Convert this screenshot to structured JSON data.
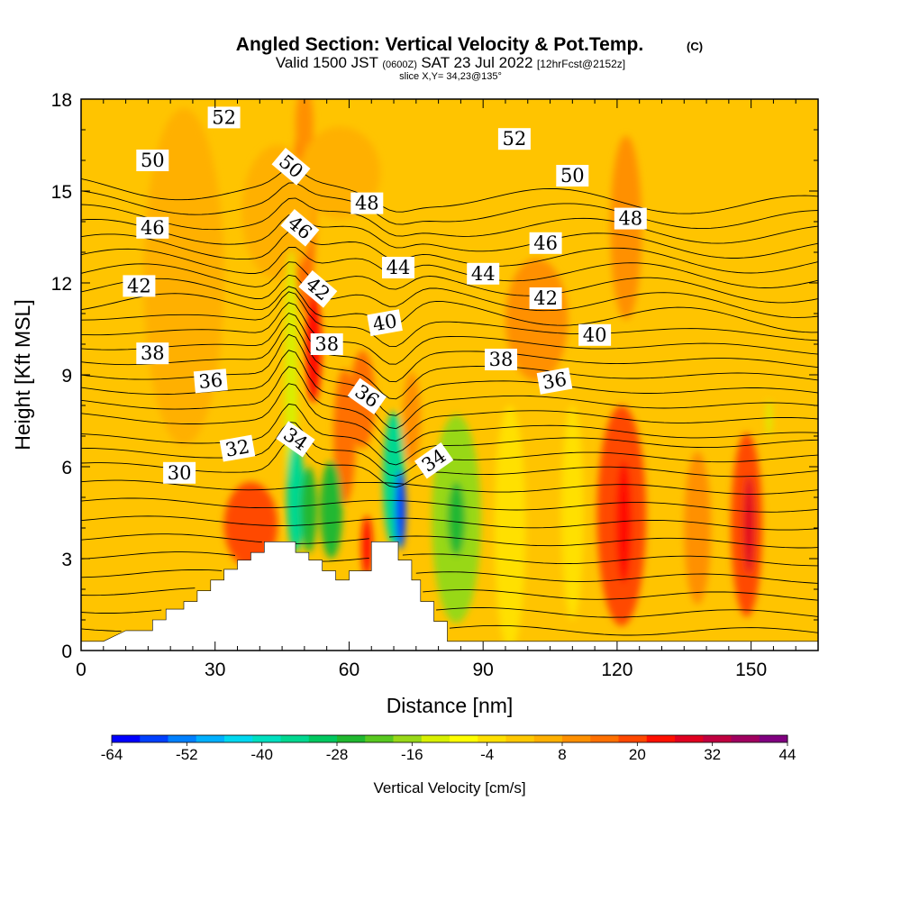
{
  "header": {
    "title_main": "Angled Section: Vertical Velocity & Pot.Temp.",
    "title_mark": "(C)",
    "valid_a": "Valid 1500 JST",
    "valid_b": "(0600Z)",
    "valid_c": "SAT 23 Jul 2022",
    "valid_d": "[12hrFcst@2152z]",
    "slice": "slice X,Y= 34,23@135°"
  },
  "chart_data": {
    "type": "heatmap",
    "title": "Angled Section: Vertical Velocity & Pot.Temp.",
    "xlabel": "Distance [nm]",
    "ylabel": "Height [Kft MSL]",
    "xlim": [
      0,
      165
    ],
    "ylim": [
      0,
      18
    ],
    "x_ticks": [
      0,
      30,
      60,
      90,
      120,
      150
    ],
    "y_ticks": [
      0,
      3,
      6,
      9,
      12,
      15,
      18
    ],
    "colorbar": {
      "label": "Vertical Velocity [cm/s]",
      "ticks": [
        -64,
        -52,
        -40,
        -28,
        -16,
        -4,
        8,
        20,
        32,
        44
      ],
      "colors": [
        "#0000ff",
        "#0040ff",
        "#0080ff",
        "#00b0ff",
        "#00d8f0",
        "#00e0c0",
        "#00d890",
        "#00c860",
        "#20b830",
        "#58c820",
        "#98d818",
        "#d8f000",
        "#ffff00",
        "#ffe000",
        "#ffc800",
        "#ffb000",
        "#ff9000",
        "#ff7000",
        "#ff4800",
        "#ff1000",
        "#e00020",
        "#c00040",
        "#a00060",
        "#800080"
      ]
    },
    "terrain_kft": [
      [
        0,
        0.3
      ],
      [
        5,
        0.3
      ],
      [
        10,
        0.65
      ],
      [
        16,
        0.65
      ],
      [
        16,
        1.0
      ],
      [
        19,
        1.0
      ],
      [
        19,
        1.35
      ],
      [
        23,
        1.35
      ],
      [
        23,
        1.6
      ],
      [
        26,
        1.6
      ],
      [
        26,
        1.95
      ],
      [
        29,
        1.95
      ],
      [
        29,
        2.3
      ],
      [
        32,
        2.3
      ],
      [
        32,
        2.65
      ],
      [
        35,
        2.65
      ],
      [
        35,
        2.95
      ],
      [
        38,
        2.95
      ],
      [
        38,
        3.2
      ],
      [
        41,
        3.2
      ],
      [
        41,
        3.55
      ],
      [
        48,
        3.55
      ],
      [
        48,
        3.2
      ],
      [
        51,
        3.2
      ],
      [
        51,
        2.95
      ],
      [
        54,
        2.95
      ],
      [
        54,
        2.6
      ],
      [
        57,
        2.6
      ],
      [
        57,
        2.3
      ],
      [
        60,
        2.3
      ],
      [
        60,
        2.6
      ],
      [
        63,
        2.6
      ],
      [
        63,
        2.6
      ],
      [
        65,
        2.6
      ],
      [
        65,
        3.55
      ],
      [
        71,
        3.55
      ],
      [
        71,
        2.95
      ],
      [
        74,
        2.95
      ],
      [
        74,
        2.3
      ],
      [
        76,
        2.3
      ],
      [
        76,
        1.6
      ],
      [
        79,
        1.6
      ],
      [
        79,
        0.95
      ],
      [
        82,
        0.95
      ],
      [
        82,
        0.3
      ],
      [
        165,
        0.3
      ]
    ],
    "theta_contour_labels": [
      {
        "text": "52",
        "x": 32,
        "y": 17.4,
        "angle": 0
      },
      {
        "text": "52",
        "x": 97,
        "y": 16.7,
        "angle": 0
      },
      {
        "text": "50",
        "x": 16,
        "y": 16.0,
        "angle": 0
      },
      {
        "text": "50",
        "x": 47,
        "y": 15.8,
        "angle": 40
      },
      {
        "text": "50",
        "x": 110,
        "y": 15.5,
        "angle": 0
      },
      {
        "text": "48",
        "x": 64,
        "y": 14.6,
        "angle": 0
      },
      {
        "text": "48",
        "x": 123,
        "y": 14.1,
        "angle": 0
      },
      {
        "text": "46",
        "x": 16,
        "y": 13.8,
        "angle": 0
      },
      {
        "text": "46",
        "x": 49,
        "y": 13.8,
        "angle": 40
      },
      {
        "text": "46",
        "x": 104,
        "y": 13.3,
        "angle": 0
      },
      {
        "text": "44",
        "x": 71,
        "y": 12.5,
        "angle": 0
      },
      {
        "text": "44",
        "x": 90,
        "y": 12.3,
        "angle": 0
      },
      {
        "text": "42",
        "x": 13,
        "y": 11.9,
        "angle": 0
      },
      {
        "text": "42",
        "x": 53,
        "y": 11.8,
        "angle": 40
      },
      {
        "text": "42",
        "x": 104,
        "y": 11.5,
        "angle": 0
      },
      {
        "text": "40",
        "x": 68,
        "y": 10.7,
        "angle": -10
      },
      {
        "text": "40",
        "x": 115,
        "y": 10.3,
        "angle": 0
      },
      {
        "text": "38",
        "x": 16,
        "y": 9.7,
        "angle": 0
      },
      {
        "text": "38",
        "x": 55,
        "y": 10.0,
        "angle": 0
      },
      {
        "text": "38",
        "x": 94,
        "y": 9.5,
        "angle": 0
      },
      {
        "text": "36",
        "x": 29,
        "y": 8.8,
        "angle": -5
      },
      {
        "text": "36",
        "x": 64,
        "y": 8.3,
        "angle": 35
      },
      {
        "text": "36",
        "x": 106,
        "y": 8.8,
        "angle": -10
      },
      {
        "text": "34",
        "x": 48,
        "y": 6.9,
        "angle": 35
      },
      {
        "text": "34",
        "x": 79,
        "y": 6.2,
        "angle": -35
      },
      {
        "text": "32",
        "x": 35,
        "y": 6.6,
        "angle": -10
      },
      {
        "text": "30",
        "x": 22,
        "y": 5.8,
        "angle": 0
      }
    ],
    "velocity_features": [
      {
        "x": 50,
        "y": 14.5,
        "rx": 2.5,
        "ry": 3.5,
        "v": 16
      },
      {
        "x": 50,
        "y": 17.2,
        "rx": 2.0,
        "ry": 1.2,
        "v": 12
      },
      {
        "x": 48,
        "y": 15.0,
        "rx": 0.9,
        "ry": 0.9,
        "v": -14
      },
      {
        "x": 44,
        "y": 14.3,
        "rx": 8,
        "ry": 2.2,
        "v": 6
      },
      {
        "x": 58,
        "y": 15.6,
        "rx": 9,
        "ry": 1.5,
        "v": 6
      },
      {
        "x": 23,
        "y": 12.2,
        "rx": 9,
        "ry": 5.5,
        "v": 4
      },
      {
        "x": 102,
        "y": 10.8,
        "rx": 7,
        "ry": 2.0,
        "v": 12
      },
      {
        "x": 122,
        "y": 13.8,
        "rx": 3.5,
        "ry": 3.0,
        "v": 8
      },
      {
        "x": 52,
        "y": 9.9,
        "rx": 1.8,
        "ry": 1.8,
        "v": 22
      },
      {
        "x": 63,
        "y": 8.2,
        "rx": 2.8,
        "ry": 1.6,
        "v": 14
      },
      {
        "x": 47,
        "y": 8.6,
        "rx": 1.4,
        "ry": 4.5,
        "v": -12
      },
      {
        "x": 59,
        "y": 7.0,
        "rx": 2.5,
        "ry": 2.2,
        "v": 14
      },
      {
        "x": 38,
        "y": 4.1,
        "rx": 6,
        "ry": 1.4,
        "v": 20
      },
      {
        "x": 48,
        "y": 5.0,
        "rx": 2.0,
        "ry": 1.8,
        "v": -34
      },
      {
        "x": 51,
        "y": 4.6,
        "rx": 1.8,
        "ry": 1.4,
        "v": -28
      },
      {
        "x": 56,
        "y": 4.6,
        "rx": 2.5,
        "ry": 1.6,
        "v": -24
      },
      {
        "x": 64,
        "y": 3.4,
        "rx": 1.2,
        "ry": 1.0,
        "v": 22
      },
      {
        "x": 70,
        "y": 5.6,
        "rx": 2.4,
        "ry": 2.2,
        "v": -36
      },
      {
        "x": 71.5,
        "y": 4.6,
        "rx": 1.2,
        "ry": 1.3,
        "v": -58
      },
      {
        "x": 74,
        "y": 7.6,
        "rx": 2.0,
        "ry": 1.5,
        "v": 12
      },
      {
        "x": 84,
        "y": 4.3,
        "rx": 5.5,
        "ry": 3.4,
        "v": -18
      },
      {
        "x": 84,
        "y": 4.3,
        "rx": 2.0,
        "ry": 1.2,
        "v": -26
      },
      {
        "x": 96,
        "y": 4.0,
        "rx": 3.5,
        "ry": 4.0,
        "v": -4
      },
      {
        "x": 121,
        "y": 4.4,
        "rx": 5.5,
        "ry": 3.6,
        "v": 18
      },
      {
        "x": 121.5,
        "y": 4.2,
        "rx": 1.8,
        "ry": 2.0,
        "v": 24
      },
      {
        "x": 138,
        "y": 4.0,
        "rx": 3.0,
        "ry": 2.5,
        "v": 12
      },
      {
        "x": 149,
        "y": 4.1,
        "rx": 3.5,
        "ry": 3.0,
        "v": 18
      },
      {
        "x": 149.5,
        "y": 4.1,
        "rx": 1.2,
        "ry": 1.6,
        "v": 28
      },
      {
        "x": 154,
        "y": 7.6,
        "rx": 0.6,
        "ry": 0.6,
        "v": -12
      },
      {
        "x": 110,
        "y": 4.5,
        "rx": 2.5,
        "ry": 3.5,
        "v": -2
      }
    ]
  }
}
